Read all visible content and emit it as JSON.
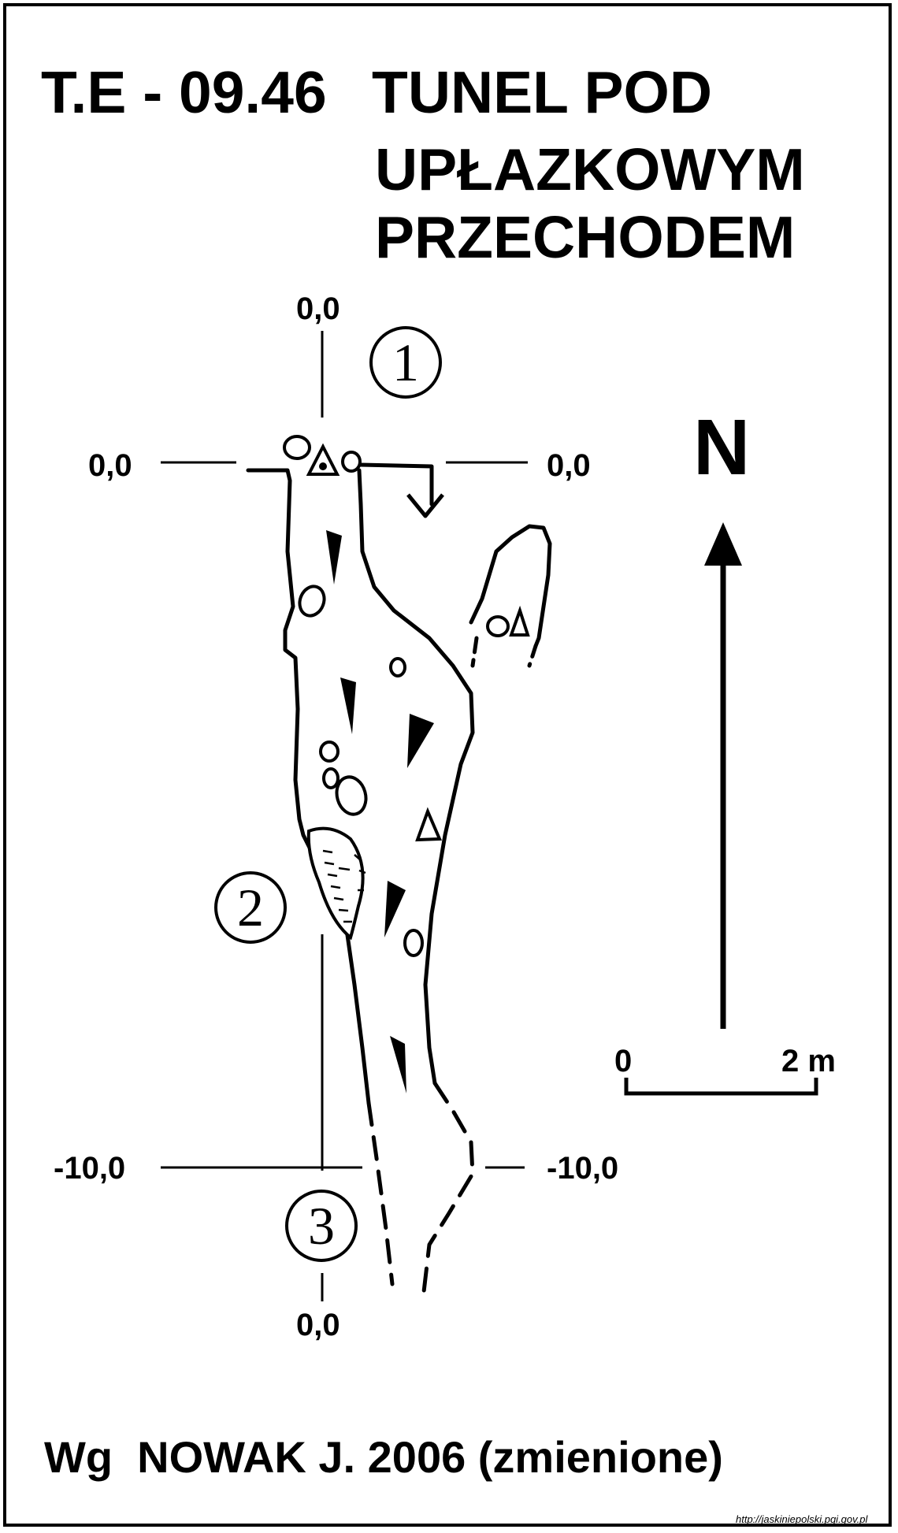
{
  "title": {
    "code": "T.E - 09.46",
    "line1": "TUNEL POD",
    "line2": "UPŁAZKOWYM",
    "line3": "PRZECHODEM"
  },
  "coordinates": {
    "top_zero": "0,0",
    "left_zero": "0,0",
    "right_zero": "0,0",
    "left_minus10": "-10,0",
    "right_minus10": "-10,0",
    "bottom_zero": "0,0"
  },
  "section_markers": [
    "1",
    "2",
    "3"
  ],
  "north_label": "N",
  "scale": {
    "start": "0",
    "end": "2 m"
  },
  "credit": "Wg  NOWAK J. 2006 (zmienione)",
  "source_url": "http://jaskiniepolski.pgi.gov.pl",
  "colors": {
    "ink": "#000000",
    "background": "#ffffff"
  }
}
